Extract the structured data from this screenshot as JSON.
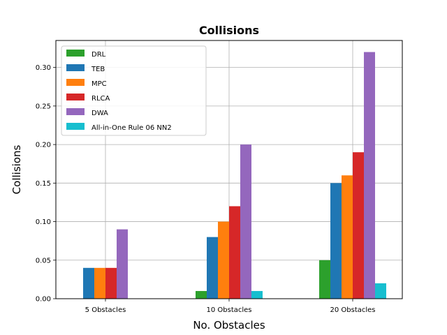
{
  "chart_data": {
    "type": "bar",
    "title": "Collisions",
    "xlabel": "No. Obstacles",
    "ylabel": "Collisions",
    "categories": [
      "5 Obstacles",
      "10 Obstacles",
      "20 Obstacles"
    ],
    "ylim": [
      0,
      0.335
    ],
    "yticks": [
      "0.00",
      "0.05",
      "0.10",
      "0.15",
      "0.20",
      "0.25",
      "0.30"
    ],
    "grid": true,
    "legend_position": "top-left",
    "series": [
      {
        "name": "DRL",
        "color": "#2ca02c",
        "values": [
          0.0,
          0.01,
          0.05
        ]
      },
      {
        "name": "TEB",
        "color": "#1f77b4",
        "values": [
          0.04,
          0.08,
          0.15
        ]
      },
      {
        "name": "MPC",
        "color": "#ff7f0e",
        "values": [
          0.04,
          0.1,
          0.16
        ]
      },
      {
        "name": "RLCA",
        "color": "#d62728",
        "values": [
          0.04,
          0.12,
          0.19
        ]
      },
      {
        "name": "DWA",
        "color": "#9467bd",
        "values": [
          0.09,
          0.2,
          0.32
        ]
      },
      {
        "name": "All-in-One Rule 06 NN2",
        "color": "#17becf",
        "values": [
          0.0,
          0.01,
          0.02
        ]
      }
    ]
  }
}
